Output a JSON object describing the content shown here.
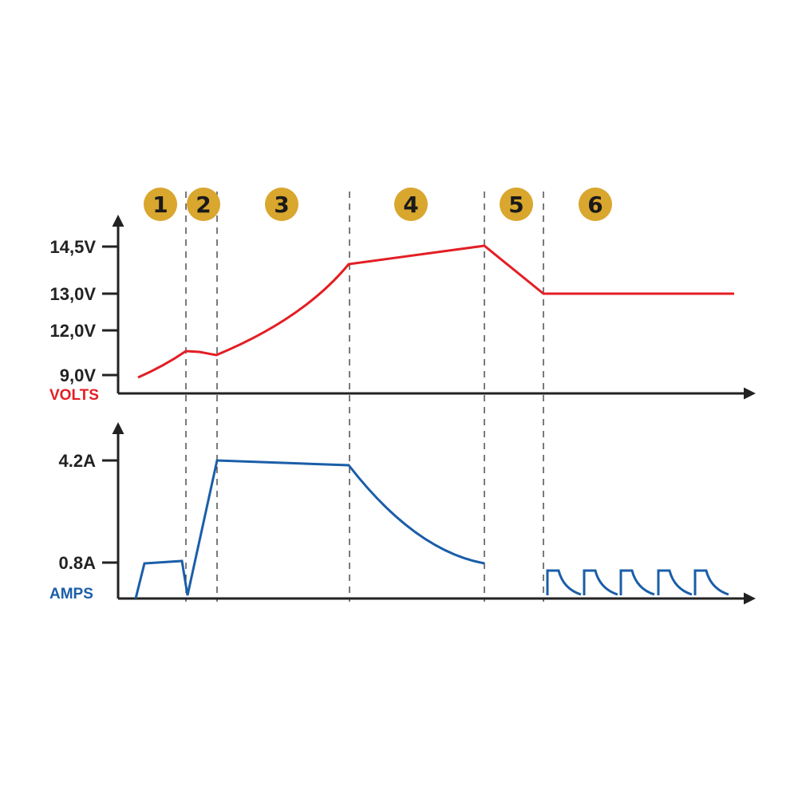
{
  "chart_data": [
    {
      "type": "line",
      "ylabel": "VOLTS",
      "yticks": [
        "14,5V",
        "13,0V",
        "12,0V",
        "9,0V"
      ],
      "ytick_values": [
        14.5,
        13.0,
        12.0,
        9.0
      ],
      "series": [
        {
          "color": "#e31e24",
          "values": [
            8.8,
            10.6,
            10.55,
            10.3,
            13.9,
            14.5,
            13.0,
            13.0
          ]
        }
      ],
      "grid": false
    },
    {
      "type": "line",
      "ylabel": "AMPS",
      "yticks": [
        "4.2A",
        "0.8A"
      ],
      "ytick_values": [
        4.2,
        0.8
      ],
      "series": [
        {
          "color": "#1a5ea8",
          "values": [
            0,
            0.8,
            0.82,
            0.05,
            4.2,
            4.15,
            0.8,
            0,
            0.7,
            0.7,
            0.7,
            0.7,
            0.7
          ]
        }
      ],
      "grid": false
    }
  ],
  "stages": [
    "1",
    "2",
    "3",
    "4",
    "5",
    "6"
  ],
  "colors": {
    "volts": "#e31e24",
    "amps": "#1a5ea8",
    "stage_badge": "#d9a62e",
    "axis": "#222222"
  }
}
